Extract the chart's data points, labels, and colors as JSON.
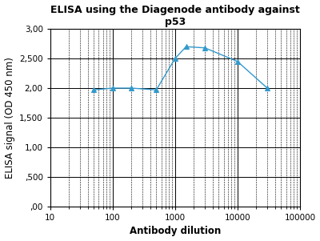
{
  "title_line1": "ELISA using the Diagenode antibody against",
  "title_line2": "p53",
  "xlabel": "Antibody dilution",
  "ylabel": "ELISA signal (OD 450 nm)",
  "x_data": [
    50,
    100,
    200,
    500,
    1000,
    1500,
    3000,
    10000,
    30000
  ],
  "y_data": [
    1.97,
    2.0,
    2.0,
    1.97,
    2.5,
    2.7,
    2.68,
    2.45,
    2.0
  ],
  "line_color": "#3399CC",
  "marker": "^",
  "marker_color": "#3399CC",
  "xlim_log": [
    10,
    100000
  ],
  "ylim": [
    0.0,
    3.0
  ],
  "yticks": [
    0.0,
    0.5,
    1.0,
    1.5,
    2.0,
    2.5,
    3.0
  ],
  "ytick_labels": [
    ",00",
    ",500",
    "1,00",
    "1,500",
    "2,00",
    "2,500",
    "3,00"
  ],
  "background_color": "#ffffff",
  "title_fontsize": 9,
  "axis_label_fontsize": 8.5,
  "tick_fontsize": 7.5
}
